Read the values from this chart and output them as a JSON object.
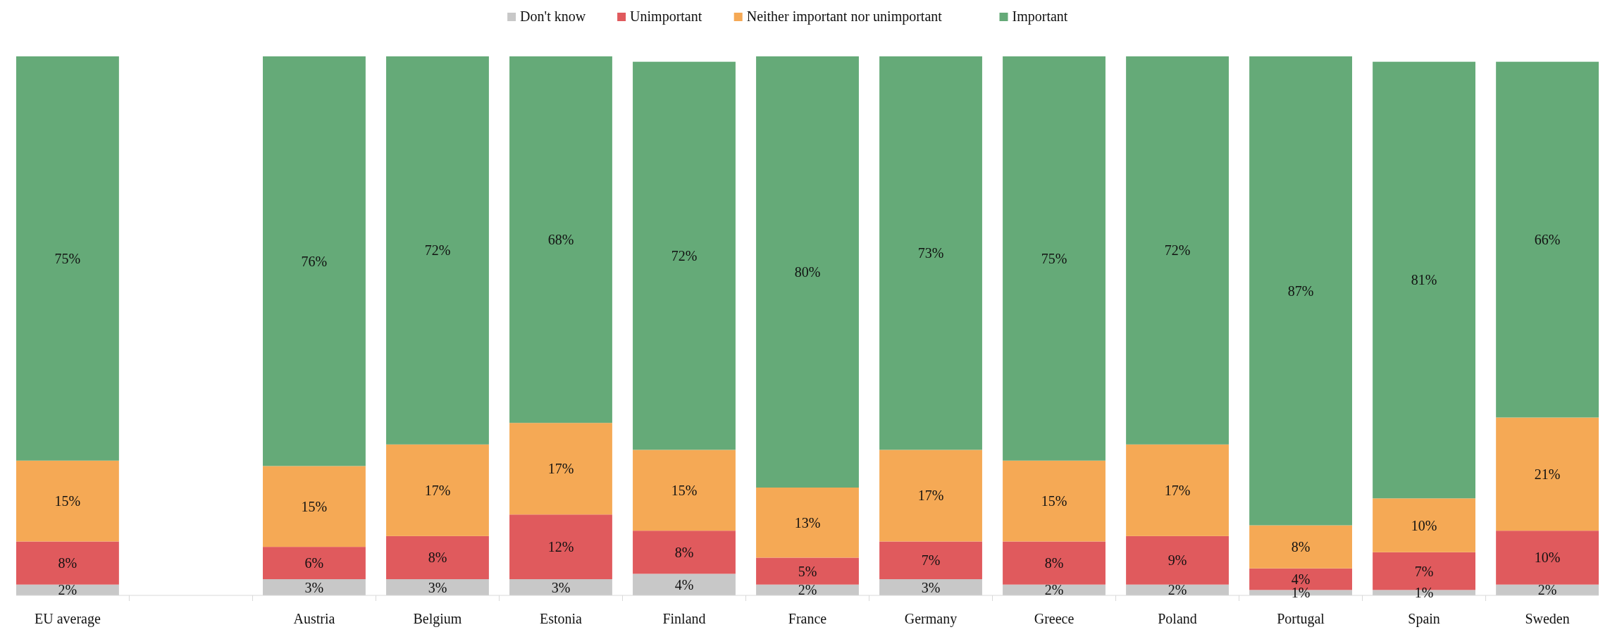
{
  "chart_data": {
    "type": "bar",
    "stacked": true,
    "legend": "top",
    "categories": [
      "EU average",
      null,
      "Austria",
      "Belgium",
      "Estonia",
      "Finland",
      "France",
      "Germany",
      "Greece",
      "Poland",
      "Portugal",
      "Spain",
      "Sweden"
    ],
    "series": [
      {
        "name": "Don't know",
        "color": "#c8c8c8",
        "values": [
          2,
          null,
          3,
          3,
          3,
          4,
          2,
          3,
          2,
          2,
          1,
          1,
          2
        ],
        "value_labels": [
          "2%",
          null,
          "3%",
          "3%",
          "3%",
          "4%",
          "2%",
          "3%",
          "2%",
          "2%",
          "1%",
          "1%",
          "2%"
        ]
      },
      {
        "name": "Unimportant",
        "color": "#e05a5d",
        "values": [
          8,
          null,
          6,
          8,
          12,
          8,
          5,
          7,
          8,
          9,
          4,
          7,
          10
        ],
        "value_labels": [
          "8%",
          null,
          "6%",
          "8%",
          "12%",
          "8%",
          "5%",
          "7%",
          "8%",
          "9%",
          "4%",
          "7%",
          "10%"
        ]
      },
      {
        "name": "Neither important nor unimportant",
        "color": "#f5a955",
        "values": [
          15,
          null,
          15,
          17,
          17,
          15,
          13,
          17,
          15,
          17,
          8,
          10,
          21
        ],
        "value_labels": [
          "15%",
          null,
          "15%",
          "17%",
          "17%",
          "15%",
          "13%",
          "17%",
          "15%",
          "17%",
          "8%",
          "10%",
          "21%"
        ]
      },
      {
        "name": "Important",
        "color": "#65aa78",
        "values": [
          75,
          null,
          76,
          72,
          68,
          72,
          80,
          73,
          75,
          72,
          87,
          81,
          66
        ],
        "value_labels": [
          "75%",
          null,
          "76%",
          "72%",
          "68%",
          "72%",
          "80%",
          "73%",
          "75%",
          "72%",
          "87%",
          "81%",
          "66%"
        ]
      }
    ]
  }
}
